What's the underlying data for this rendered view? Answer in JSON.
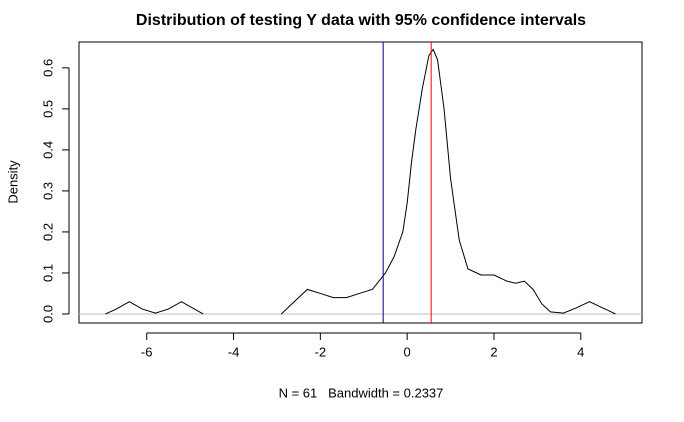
{
  "chart_data": {
    "type": "line",
    "title": "Distribution of testing Y data with 95% confidence intervals",
    "x_label": "N = 61   Bandwidth = 0.2337",
    "y_label": "Density",
    "color": "#000000",
    "x": [
      -6.95,
      -6.7,
      -6.4,
      -6.1,
      -5.8,
      -5.5,
      -5.2,
      -4.9,
      -4.7,
      -3.8,
      -2.9,
      -2.6,
      -2.3,
      -2.0,
      -1.7,
      -1.4,
      -1.1,
      -0.8,
      -0.5,
      -0.3,
      -0.1,
      0,
      0.1,
      0.2,
      0.35,
      0.5,
      0.6,
      0.7,
      0.85,
      1.0,
      1.2,
      1.4,
      1.7,
      2.0,
      2.3,
      2.5,
      2.7,
      2.9,
      3.1,
      3.3,
      3.6,
      3.9,
      4.2,
      4.5,
      4.8
    ],
    "values": [
      0,
      0.012,
      0.03,
      0.012,
      0.002,
      0.012,
      0.03,
      0.012,
      0,
      null,
      0,
      0.03,
      0.06,
      0.05,
      0.04,
      0.04,
      0.05,
      0.06,
      0.1,
      0.14,
      0.2,
      0.27,
      0.37,
      0.45,
      0.55,
      0.63,
      0.645,
      0.62,
      0.5,
      0.33,
      0.18,
      0.11,
      0.095,
      0.095,
      0.08,
      0.075,
      0.08,
      0.06,
      0.025,
      0.005,
      0.002,
      0.015,
      0.03,
      0.015,
      0
    ],
    "vlines": [
      {
        "x": -0.553,
        "color": "#00008b"
      },
      {
        "x": 0.553,
        "color": "#ff0000"
      }
    ],
    "hline": {
      "y": 0,
      "color": "#bebebe"
    },
    "xlim": [
      -7.56,
      5.41
    ],
    "ylim": [
      -0.022,
      0.663
    ],
    "xticks": [
      -6,
      -4,
      -2,
      0,
      2,
      4
    ],
    "yticks": [
      {
        "value": 0,
        "label": "0.0"
      },
      0.1,
      0.2,
      0.3,
      0.4,
      0.5,
      0.6
    ]
  }
}
